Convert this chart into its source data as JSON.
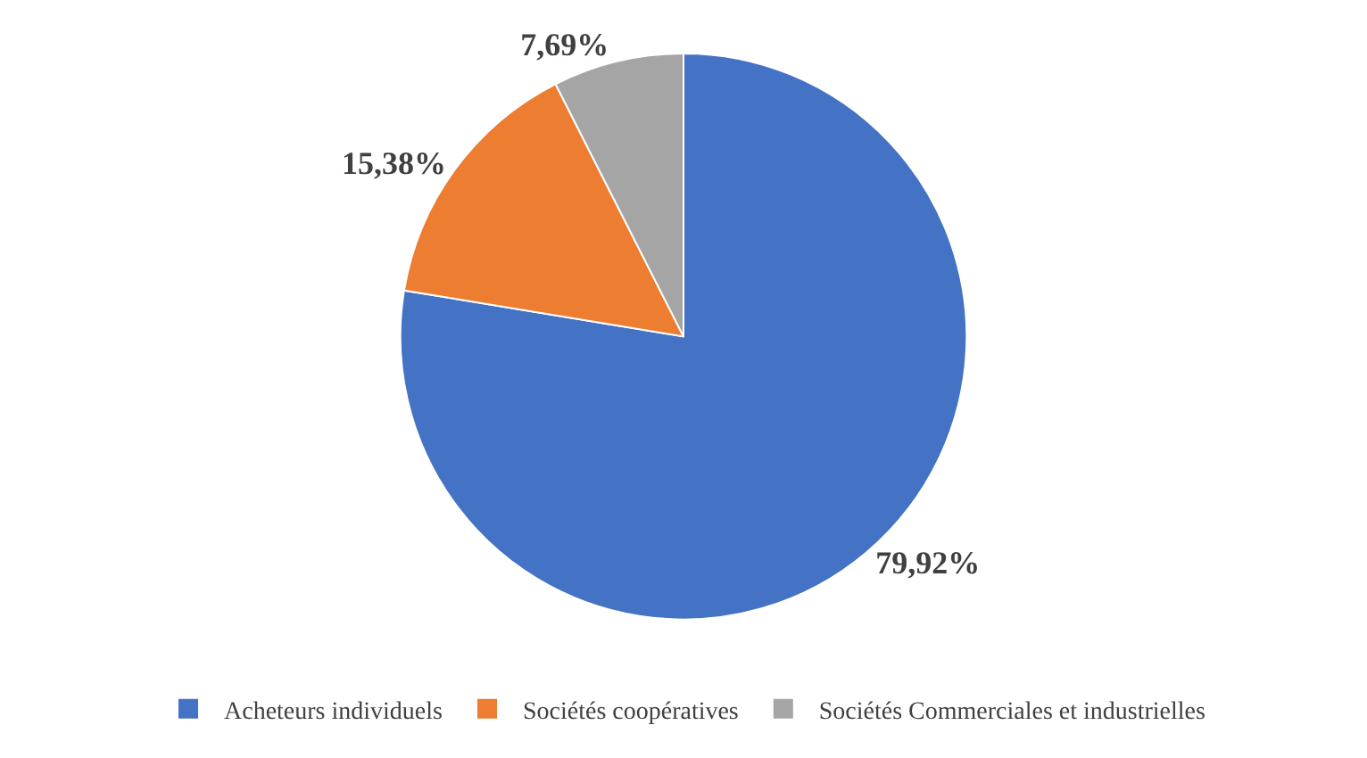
{
  "chart_data": {
    "type": "pie",
    "categories": [
      "Acheteurs individuels",
      "Sociétés coopératives",
      "Sociétés Commerciales et industrielles"
    ],
    "values": [
      79.92,
      15.38,
      7.69
    ],
    "value_labels": [
      "79,92%",
      "15,38%",
      "7,69%"
    ],
    "colors": [
      "#4472c4",
      "#ed7d31",
      "#a5a5a5"
    ],
    "legend": "bottom"
  }
}
